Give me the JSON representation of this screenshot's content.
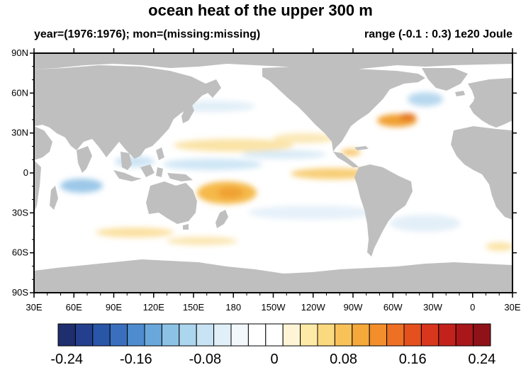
{
  "title": "ocean heat of the upper 300 m",
  "subtitle_left": "year=(1976:1976); mon=(missing:missing)",
  "subtitle_right": "range (-0.1 : 0.3) 1e20 Joule",
  "lat_ticks": [
    "90N",
    "60N",
    "30N",
    "0",
    "30S",
    "60S",
    "90S"
  ],
  "lon_ticks": [
    "30E",
    "60E",
    "90E",
    "120E",
    "150E",
    "180",
    "150W",
    "120W",
    "90W",
    "60W",
    "30W",
    "0",
    "30E"
  ],
  "colorbar": {
    "colors": [
      "#1f2e6e",
      "#233f8e",
      "#2a56a8",
      "#3a6fbe",
      "#4f8ccf",
      "#6aa8dc",
      "#8cc2e6",
      "#acd5ee",
      "#c8e3f3",
      "#e0eff8",
      "#f2f8fc",
      "#ffffff",
      "#ffffff",
      "#fff5d6",
      "#fdeaa6",
      "#fbd97e",
      "#f8c259",
      "#f5a93a",
      "#f28f2c",
      "#ee7024",
      "#e4511f",
      "#d8361d",
      "#c3221c",
      "#a9171b",
      "#8f1218"
    ],
    "labels": [
      "-0.24",
      "-0.16",
      "-0.08",
      "0",
      "0.08",
      "0.16",
      "0.24"
    ]
  },
  "map": {
    "land_color": "#bfbfbf",
    "ocean_color": "#ffffff",
    "anomalies": [
      {
        "region": "North Atlantic Gulf Stream",
        "sign": "positive",
        "color": "#f0a030"
      },
      {
        "region": "Southwest Pacific",
        "sign": "positive",
        "color": "#f5b040"
      },
      {
        "region": "Eastern Equatorial Pacific",
        "sign": "positive",
        "color": "#f8c870"
      },
      {
        "region": "North Pacific",
        "sign": "positive",
        "color": "#fbd98e"
      },
      {
        "region": "Equatorial Indian Ocean",
        "sign": "negative",
        "color": "#9cc8e8"
      },
      {
        "region": "North Atlantic subpolar",
        "sign": "negative",
        "color": "#b8d8ef"
      }
    ]
  }
}
